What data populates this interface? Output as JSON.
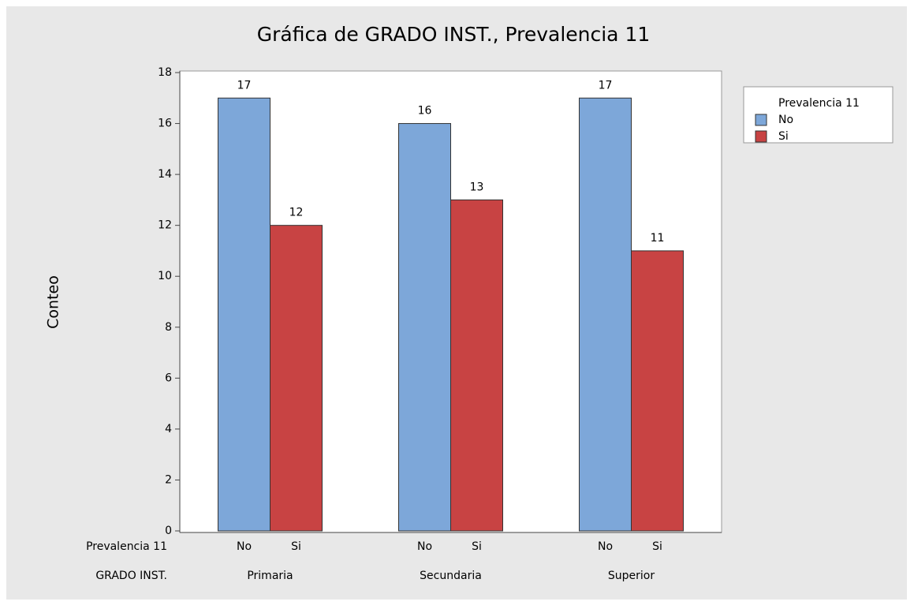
{
  "chart_data": {
    "type": "bar",
    "title": "Gráfica de GRADO INST., Prevalencia 11",
    "ylabel": "Conteo",
    "xlabels": [
      "Prevalencia 11",
      "GRADO INST."
    ],
    "legend_title": "Prevalencia 11",
    "legend": "right",
    "data_labels": true,
    "categories": [
      "Primaria",
      "Secundaria",
      "Superior"
    ],
    "series": [
      {
        "name": "No",
        "color": "#7da7d9",
        "values": [
          17,
          16,
          17
        ]
      },
      {
        "name": "Si",
        "color": "#c84343",
        "values": [
          12,
          13,
          11
        ]
      }
    ],
    "ylim": [
      0,
      18
    ],
    "yticks": [
      0,
      2,
      4,
      6,
      8,
      10,
      12,
      14,
      16,
      18
    ]
  }
}
